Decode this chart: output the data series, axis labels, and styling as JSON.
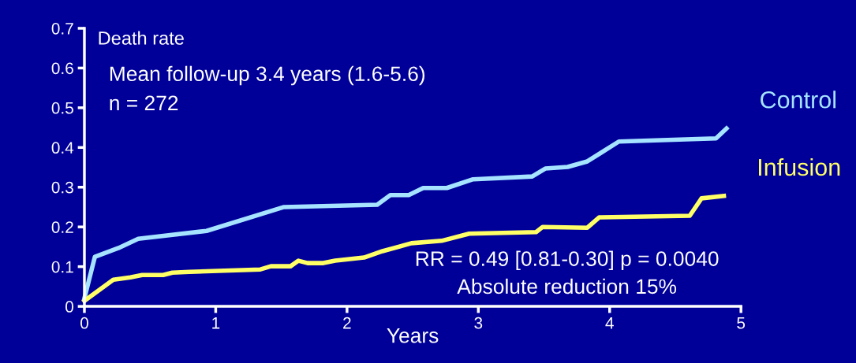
{
  "chart_data": {
    "type": "line",
    "xlabel": "Years",
    "ylabel": "Death rate",
    "xlim": [
      0,
      5
    ],
    "xticks": [
      0,
      1,
      2,
      3,
      4,
      5
    ],
    "ylim": [
      0,
      0.7
    ],
    "yticks": [
      0,
      0.1,
      0.2,
      0.3,
      0.4,
      0.5,
      0.6,
      0.7
    ],
    "grid": false,
    "legend": false,
    "series": [
      {
        "name": "Control",
        "color": "#a6e3ff",
        "x": [
          0,
          0.08,
          0.26,
          0.41,
          0.93,
          1.52,
          2.23,
          2.33,
          2.47,
          2.58,
          2.76,
          2.96,
          3.41,
          3.51,
          3.68,
          3.83,
          4.07,
          4.81,
          4.89
        ],
        "values": [
          0.02,
          0.125,
          0.147,
          0.17,
          0.19,
          0.25,
          0.256,
          0.28,
          0.28,
          0.298,
          0.298,
          0.32,
          0.327,
          0.347,
          0.351,
          0.365,
          0.415,
          0.423,
          0.448
        ]
      },
      {
        "name": "Infusion",
        "color": "#ffff66",
        "x": [
          0,
          0.22,
          0.35,
          0.44,
          0.6,
          0.67,
          0.8,
          1.34,
          1.42,
          1.57,
          1.63,
          1.7,
          1.82,
          1.91,
          2.13,
          2.27,
          2.49,
          2.72,
          2.93,
          3.44,
          3.49,
          3.83,
          3.92,
          4.61,
          4.7,
          4.87
        ],
        "values": [
          0.014,
          0.067,
          0.073,
          0.079,
          0.079,
          0.085,
          0.087,
          0.093,
          0.101,
          0.101,
          0.115,
          0.109,
          0.109,
          0.115,
          0.123,
          0.139,
          0.159,
          0.165,
          0.183,
          0.187,
          0.2,
          0.198,
          0.224,
          0.228,
          0.272,
          0.278
        ]
      }
    ],
    "annotations": [
      "Mean follow-up 3.4 years (1.6-5.6)",
      "n = 272",
      "RR = 0.49 [0.81-0.30] p = 0.0040",
      "Absolute reduction 15%"
    ]
  }
}
